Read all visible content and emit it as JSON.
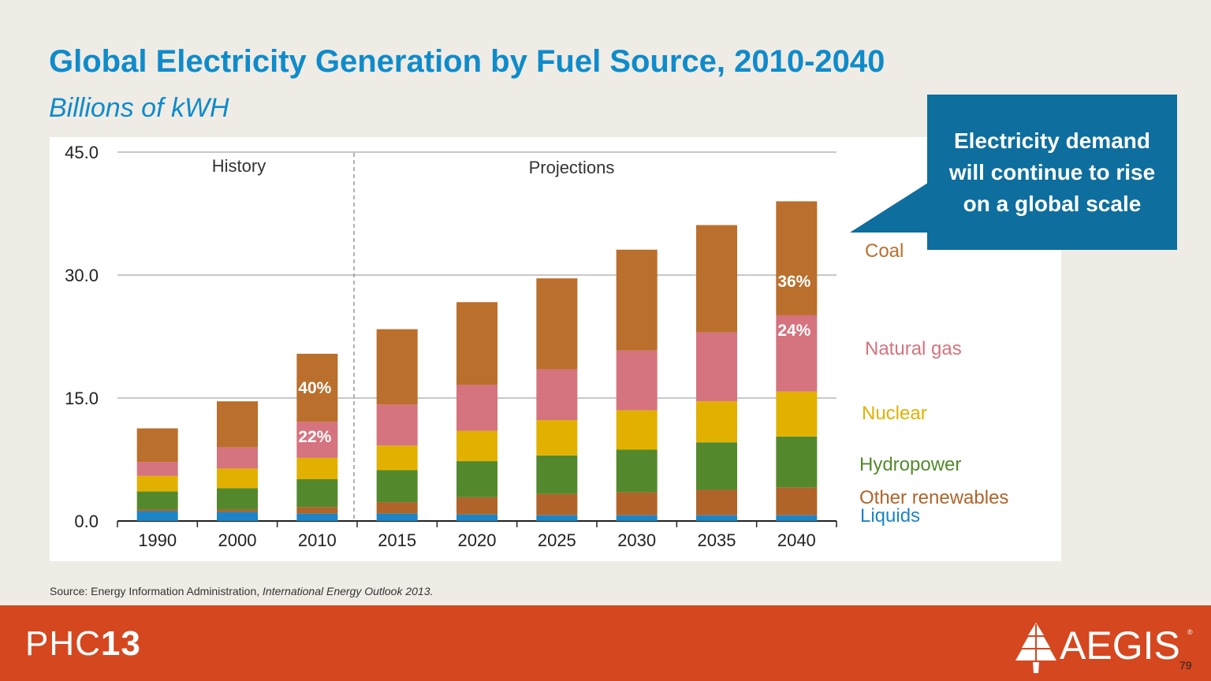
{
  "slide": {
    "title": "Global Electricity Generation by Fuel Source, 2010-2040",
    "subtitle": "Billions of kWH",
    "callout": "Electricity demand will continue to rise on a global scale",
    "source_prefix": "Source: Energy Information Administration, ",
    "source_italic": "International Energy Outlook 2013.",
    "page_number": "79",
    "brand_left_prefix": "PHC",
    "brand_left_number": "13",
    "brand_right": "AEGIS",
    "brand_right_mark": "®"
  },
  "colors": {
    "background": "#EFECE5",
    "title": "#0F8BCB",
    "callout": "#0E6E9E",
    "footer": "#D5471F",
    "Liquids": "#1B85C7",
    "Other renewables": "#B0642A",
    "Hydropower": "#53892C",
    "Nuclear": "#E2B100",
    "Natural gas": "#D5737E",
    "Coal": "#BA6F2C"
  },
  "chart_data": {
    "type": "bar",
    "stacked": true,
    "categories": [
      "1990",
      "2000",
      "2010",
      "2015",
      "2020",
      "2025",
      "2030",
      "2035",
      "2040"
    ],
    "ylim": [
      0,
      45
    ],
    "yticks": [
      "0.0",
      "15.0",
      "30.0",
      "45.0"
    ],
    "ytick_values": [
      0,
      15,
      30,
      45
    ],
    "grid": true,
    "regions": [
      {
        "label": "History",
        "categories": [
          "1990",
          "2000",
          "2010"
        ]
      },
      {
        "label": "Projections",
        "categories": [
          "2015",
          "2020",
          "2025",
          "2030",
          "2035",
          "2040"
        ]
      }
    ],
    "series": [
      {
        "name": "Liquids",
        "values": [
          1.2,
          1.1,
          0.9,
          0.9,
          0.8,
          0.7,
          0.7,
          0.7,
          0.7
        ]
      },
      {
        "name": "Other renewables",
        "values": [
          0.2,
          0.3,
          0.8,
          1.4,
          2.1,
          2.6,
          2.8,
          3.1,
          3.4
        ]
      },
      {
        "name": "Hydropower",
        "values": [
          2.2,
          2.6,
          3.4,
          3.9,
          4.4,
          4.7,
          5.2,
          5.8,
          6.2
        ]
      },
      {
        "name": "Nuclear",
        "values": [
          1.9,
          2.4,
          2.6,
          3.0,
          3.7,
          4.3,
          4.8,
          5.0,
          5.5
        ]
      },
      {
        "name": "Natural gas",
        "values": [
          1.7,
          2.6,
          4.4,
          5.0,
          5.6,
          6.2,
          7.3,
          8.4,
          9.3
        ]
      },
      {
        "name": "Coal",
        "values": [
          4.1,
          5.6,
          8.3,
          9.2,
          10.1,
          11.1,
          12.3,
          13.1,
          13.9
        ]
      }
    ],
    "annotations": [
      {
        "category": "2010",
        "series": "Coal",
        "text": "40%"
      },
      {
        "category": "2010",
        "series": "Natural gas",
        "text": "22%"
      },
      {
        "category": "2040",
        "series": "Coal",
        "text": "36%"
      },
      {
        "category": "2040",
        "series": "Natural gas",
        "text": "24%"
      }
    ],
    "legend_position": "right",
    "legend": [
      "Coal",
      "Natural gas",
      "Nuclear",
      "Hydropower",
      "Other renewables",
      "Liquids"
    ]
  }
}
